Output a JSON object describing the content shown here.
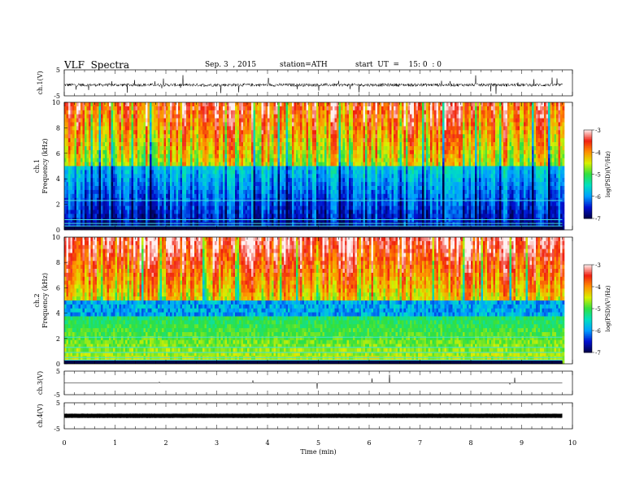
{
  "header": {
    "title": "VLF  Spectra",
    "date": "Sep. 3  , 2015",
    "station": "station=ATH",
    "start": "start  UT  =    15: 0  : 0"
  },
  "chart_data": [
    {
      "type": "line",
      "name": "ch1-waveform",
      "ylabel": "ch.1(V)",
      "yticks": [
        "5",
        "-5"
      ],
      "ylim": [
        -5,
        5
      ],
      "xlim": [
        0,
        10
      ],
      "baseline": -0.8,
      "data_end_min": 9.8
    },
    {
      "type": "heatmap",
      "name": "ch1-spectrogram",
      "ylabel": "ch.1\nFrequency  (kHz)",
      "ylabel_lines": [
        "ch.1",
        "Frequency  (kHz)"
      ],
      "yticks": [
        "10",
        "8",
        "6",
        "4",
        "2",
        "0"
      ],
      "ylim": [
        0,
        10
      ],
      "xlim": [
        0,
        10
      ],
      "data_end_min": 9.8,
      "colorbar": {
        "label": "log(PSD)(V²/Hz)",
        "ticks": [
          "-3",
          "-4",
          "-5",
          "-6",
          "-7"
        ],
        "range": [
          -7,
          -3
        ]
      }
    },
    {
      "type": "heatmap",
      "name": "ch2-spectrogram",
      "ylabel": "ch.2\nFrequency  (kHz)",
      "ylabel_lines": [
        "ch.2",
        "Frequency  (kHz)"
      ],
      "yticks": [
        "10",
        "8",
        "6",
        "4",
        "2",
        "0"
      ],
      "ylim": [
        0,
        10
      ],
      "xlim": [
        0,
        10
      ],
      "data_end_min": 9.8,
      "colorbar": {
        "label": "log(PSD)(V²/Hz)",
        "ticks": [
          "-3",
          "-4",
          "-5",
          "-6",
          "-7"
        ],
        "range": [
          -7,
          -3
        ]
      }
    },
    {
      "type": "line",
      "name": "ch3-waveform",
      "ylabel": "ch.3(V)",
      "yticks": [
        "5",
        "-5"
      ],
      "ylim": [
        -5,
        5
      ],
      "xlim": [
        0,
        10
      ],
      "baseline": 0,
      "data_end_min": 9.8
    },
    {
      "type": "line",
      "name": "ch4-waveform",
      "ylabel": "ch.4(V)",
      "yticks": [
        "5",
        "-5"
      ],
      "ylim": [
        -5,
        5
      ],
      "xlim": [
        0,
        10
      ],
      "baseline": 0,
      "data_end_min": 9.8
    }
  ],
  "xaxis": {
    "label": "Time  (min)",
    "ticks": [
      "0",
      "1",
      "2",
      "3",
      "4",
      "5",
      "6",
      "7",
      "8",
      "9",
      "10"
    ],
    "range": [
      0,
      10
    ]
  }
}
